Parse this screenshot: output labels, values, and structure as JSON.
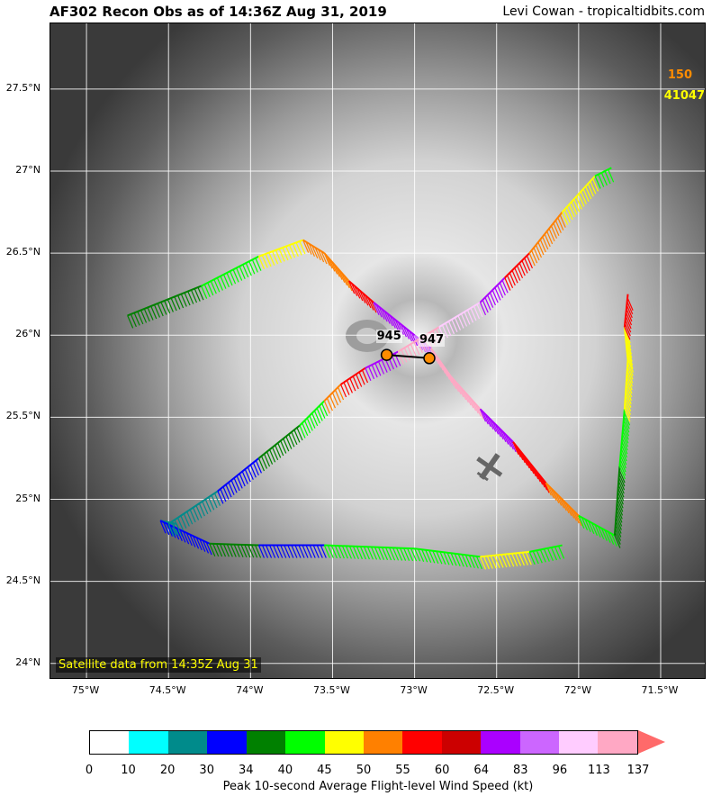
{
  "title": "AF302 Recon Obs as of 14:36Z Aug 31, 2019",
  "credit": "Levi Cowan - tropicaltidbits.com",
  "satellite_label": "Satellite data from 14:35Z Aug 31",
  "lat_labels": [
    "27.5°N",
    "27°N",
    "26.5°N",
    "26°N",
    "25.5°N",
    "25°N",
    "24.5°N",
    "24°N"
  ],
  "lon_labels": [
    "75°W",
    "74.5°W",
    "74°W",
    "73.5°W",
    "73°W",
    "72.5°W",
    "72°W",
    "71.5°W"
  ],
  "buoy": {
    "value": "150",
    "id": "41047",
    "value_color": "#ff8c00",
    "id_color": "#ffff00"
  },
  "dropsondes": [
    {
      "pressure": "945",
      "lon": -73.17,
      "lat": 25.88
    },
    {
      "pressure": "947",
      "lon": -72.91,
      "lat": 25.86
    }
  ],
  "colorbar": {
    "title": "Peak 10-second Average Flight-level Wind Speed (kt)",
    "ticks": [
      "0",
      "10",
      "20",
      "30",
      "34",
      "40",
      "45",
      "50",
      "55",
      "60",
      "64",
      "83",
      "96",
      "113",
      "137"
    ],
    "colors": [
      "#ffffff",
      "#00ffff",
      "#008b8b",
      "#0000ff",
      "#008000",
      "#00ff00",
      "#ffff00",
      "#ff8000",
      "#ff0000",
      "#cc0000",
      "#aa00ff",
      "#cc66ff",
      "#ffccff",
      "#ffa8c4",
      "#ff6a6a"
    ]
  },
  "chart_data": {
    "type": "map",
    "title": "AF302 Recon Obs as of 14:36Z Aug 31, 2019",
    "extent": {
      "lon": [
        -75.22,
        -71.22
      ],
      "lat": [
        23.9,
        27.9
      ]
    },
    "flight_track": [
      {
        "lon": -74.75,
        "lat": 26.12,
        "c": "#008000"
      },
      {
        "lon": -74.3,
        "lat": 26.3,
        "c": "#00ff00"
      },
      {
        "lon": -73.95,
        "lat": 26.48,
        "c": "#ffff00"
      },
      {
        "lon": -73.68,
        "lat": 26.58,
        "c": "#ff8000"
      },
      {
        "lon": -73.55,
        "lat": 26.5,
        "c": "#ff8000"
      },
      {
        "lon": -73.4,
        "lat": 26.33,
        "c": "#ff0000"
      },
      {
        "lon": -73.25,
        "lat": 26.2,
        "c": "#aa00ff"
      },
      {
        "lon": -73.0,
        "lat": 26.0,
        "c": "#cc66ff"
      },
      {
        "lon": -72.9,
        "lat": 25.92,
        "c": "#ffa8c4"
      },
      {
        "lon": -72.78,
        "lat": 25.75,
        "c": "#ffa8c4"
      },
      {
        "lon": -72.6,
        "lat": 25.55,
        "c": "#aa00ff"
      },
      {
        "lon": -72.4,
        "lat": 25.35,
        "c": "#ff0000"
      },
      {
        "lon": -72.2,
        "lat": 25.1,
        "c": "#ff8000"
      },
      {
        "lon": -72.0,
        "lat": 24.9,
        "c": "#00ff00"
      },
      {
        "lon": -71.78,
        "lat": 24.78,
        "c": "#008000"
      },
      {
        "lon": -71.75,
        "lat": 25.2,
        "c": "#00ff00"
      },
      {
        "lon": -71.72,
        "lat": 25.55,
        "c": "#ffff00"
      },
      {
        "lon": -71.7,
        "lat": 25.85,
        "c": "#ffff00"
      },
      {
        "lon": -71.72,
        "lat": 26.05,
        "c": "#ff0000"
      },
      {
        "lon": -71.7,
        "lat": 26.25,
        "c": "#ff8000"
      }
    ],
    "flight_track_2": [
      {
        "lon": -74.45,
        "lat": 24.85,
        "c": "#008b8b"
      },
      {
        "lon": -74.55,
        "lat": 24.87,
        "c": "#0000ff"
      },
      {
        "lon": -74.25,
        "lat": 24.73,
        "c": "#008000"
      },
      {
        "lon": -73.95,
        "lat": 24.72,
        "c": "#0000ff"
      },
      {
        "lon": -73.55,
        "lat": 24.72,
        "c": "#00ff00"
      },
      {
        "lon": -73.0,
        "lat": 24.7,
        "c": "#00ff00"
      },
      {
        "lon": -72.6,
        "lat": 24.65,
        "c": "#ffff00"
      },
      {
        "lon": -72.3,
        "lat": 24.68,
        "c": "#00ff00"
      },
      {
        "lon": -72.1,
        "lat": 24.72,
        "c": "#008000"
      }
    ],
    "flight_track_3": [
      {
        "lon": -74.5,
        "lat": 24.85,
        "c": "#008b8b"
      },
      {
        "lon": -74.2,
        "lat": 25.05,
        "c": "#0000ff"
      },
      {
        "lon": -73.95,
        "lat": 25.25,
        "c": "#008000"
      },
      {
        "lon": -73.7,
        "lat": 25.45,
        "c": "#00ff00"
      },
      {
        "lon": -73.55,
        "lat": 25.6,
        "c": "#ff8000"
      },
      {
        "lon": -73.45,
        "lat": 25.7,
        "c": "#ff0000"
      },
      {
        "lon": -73.3,
        "lat": 25.8,
        "c": "#aa00ff"
      },
      {
        "lon": -73.1,
        "lat": 25.9,
        "c": "#ffa8c4"
      },
      {
        "lon": -72.85,
        "lat": 26.05,
        "c": "#ffccff"
      },
      {
        "lon": -72.6,
        "lat": 26.2,
        "c": "#aa00ff"
      },
      {
        "lon": -72.45,
        "lat": 26.35,
        "c": "#ff0000"
      },
      {
        "lon": -72.3,
        "lat": 26.5,
        "c": "#ff8000"
      },
      {
        "lon": -72.1,
        "lat": 26.75,
        "c": "#ffff00"
      },
      {
        "lon": -71.9,
        "lat": 26.97,
        "c": "#00ff00"
      },
      {
        "lon": -71.8,
        "lat": 27.02,
        "c": "#008000"
      }
    ]
  }
}
